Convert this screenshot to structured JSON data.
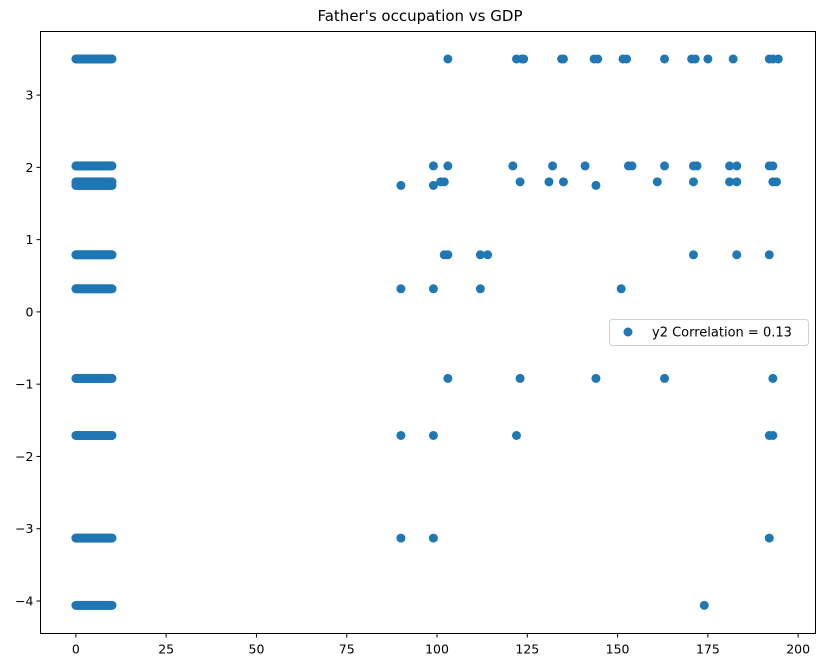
{
  "chart_data": {
    "type": "scatter",
    "title": "Father's occupation vs GDP",
    "xlabel": "",
    "ylabel": "",
    "xlim": [
      -9.8,
      204.8
    ],
    "ylim": [
      -4.45,
      3.88
    ],
    "x_ticks": [
      0,
      25,
      50,
      75,
      100,
      125,
      150,
      175,
      200
    ],
    "y_ticks": [
      -4,
      -3,
      -2,
      -1,
      0,
      1,
      2,
      3
    ],
    "x_tick_labels": [
      "0",
      "25",
      "50",
      "75",
      "100",
      "125",
      "150",
      "175",
      "200"
    ],
    "y_tick_labels": [
      "−4",
      "−3",
      "−2",
      "−1",
      "0",
      "1",
      "2",
      "3"
    ],
    "grid": false,
    "legend_position": "center-right",
    "color": "#1f77b4",
    "series": [
      {
        "name": "y2 Correlation = 0.13",
        "dense_clusters": {
          "x_range": [
            0,
            10
          ],
          "y_levels": [
            3.5,
            2.02,
            1.8,
            1.75,
            0.79,
            0.32,
            -0.92,
            -1.71,
            -3.13,
            -4.06
          ]
        },
        "points": [
          [
            103.0,
            3.5
          ],
          [
            122.0,
            3.5
          ],
          [
            123.5,
            3.5
          ],
          [
            124.0,
            3.5
          ],
          [
            134.5,
            3.5
          ],
          [
            135.0,
            3.5
          ],
          [
            143.5,
            3.5
          ],
          [
            144.5,
            3.5
          ],
          [
            151.5,
            3.5
          ],
          [
            152.5,
            3.5
          ],
          [
            163.0,
            3.5
          ],
          [
            170.5,
            3.5
          ],
          [
            171.5,
            3.5
          ],
          [
            175.0,
            3.5
          ],
          [
            182.0,
            3.5
          ],
          [
            192.0,
            3.5
          ],
          [
            193.0,
            3.5
          ],
          [
            194.5,
            3.5
          ],
          [
            99.0,
            2.02
          ],
          [
            103.0,
            2.02
          ],
          [
            121.0,
            2.02
          ],
          [
            132.0,
            2.02
          ],
          [
            141.0,
            2.02
          ],
          [
            153.0,
            2.02
          ],
          [
            154.0,
            2.02
          ],
          [
            163.0,
            2.02
          ],
          [
            171.0,
            2.02
          ],
          [
            172.0,
            2.02
          ],
          [
            181.0,
            2.02
          ],
          [
            183.0,
            2.02
          ],
          [
            192.0,
            2.02
          ],
          [
            193.0,
            2.02
          ],
          [
            101.0,
            1.8
          ],
          [
            102.0,
            1.8
          ],
          [
            123.0,
            1.8
          ],
          [
            131.0,
            1.8
          ],
          [
            135.0,
            1.8
          ],
          [
            161.0,
            1.8
          ],
          [
            171.0,
            1.8
          ],
          [
            181.0,
            1.8
          ],
          [
            183.0,
            1.8
          ],
          [
            193.0,
            1.8
          ],
          [
            194.0,
            1.8
          ],
          [
            90.0,
            1.75
          ],
          [
            99.0,
            1.75
          ],
          [
            144.0,
            1.75
          ],
          [
            102.0,
            0.79
          ],
          [
            103.0,
            0.79
          ],
          [
            112.0,
            0.79
          ],
          [
            114.0,
            0.79
          ],
          [
            171.0,
            0.79
          ],
          [
            183.0,
            0.79
          ],
          [
            192.0,
            0.79
          ],
          [
            90.0,
            0.32
          ],
          [
            99.0,
            0.32
          ],
          [
            112.0,
            0.32
          ],
          [
            151.0,
            0.32
          ],
          [
            103.0,
            -0.92
          ],
          [
            123.0,
            -0.92
          ],
          [
            144.0,
            -0.92
          ],
          [
            163.0,
            -0.92
          ],
          [
            193.0,
            -0.92
          ],
          [
            90.0,
            -1.71
          ],
          [
            99.0,
            -1.71
          ],
          [
            122.0,
            -1.71
          ],
          [
            192.0,
            -1.71
          ],
          [
            193.0,
            -1.71
          ],
          [
            90.0,
            -3.13
          ],
          [
            99.0,
            -3.13
          ],
          [
            192.0,
            -3.13
          ],
          [
            174.0,
            -4.06
          ]
        ]
      }
    ]
  }
}
